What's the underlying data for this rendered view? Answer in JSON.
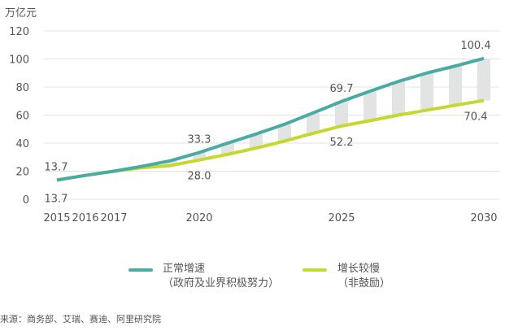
{
  "chart_data": {
    "type": "line",
    "ylabel": "万亿元",
    "ylim": [
      0,
      120
    ],
    "yticks": [
      0,
      20,
      40,
      60,
      80,
      100,
      120
    ],
    "x": [
      2015,
      2016,
      2017,
      2018,
      2019,
      2020,
      2021,
      2022,
      2023,
      2024,
      2025,
      2026,
      2027,
      2028,
      2029,
      2030
    ],
    "xtick_labels": [
      "2015",
      "2016",
      "2017",
      "2020",
      "2025",
      "2030"
    ],
    "xtick_values": [
      2015,
      2016,
      2017,
      2020,
      2025,
      2030
    ],
    "grid": true,
    "legend_position": "bottom",
    "series": [
      {
        "name": "正常增速",
        "name2": "（政府及业界积极努力）",
        "color": "#4aaba4",
        "values": [
          13.7,
          17,
          20,
          23.5,
          27.5,
          33.3,
          40,
          46.5,
          53.5,
          61.5,
          69.7,
          77,
          84,
          90,
          95,
          100.4
        ]
      },
      {
        "name": "增长较慢",
        "name2": "（非鼓励）",
        "color": "#c5d82e",
        "values": [
          13.7,
          17,
          20,
          22.5,
          24,
          28.0,
          32,
          36.5,
          41.5,
          47,
          52.2,
          56,
          60,
          63.5,
          67,
          70.4
        ]
      }
    ],
    "gap_bars_color": "#e1e4e3",
    "annotations": [
      {
        "text": "13.7",
        "year": 2015,
        "series": 0
      },
      {
        "text": "13.7",
        "year": 2015,
        "series": 1
      },
      {
        "text": "33.3",
        "year": 2020,
        "series": 0
      },
      {
        "text": "28.0",
        "year": 2020,
        "series": 1
      },
      {
        "text": "69.7",
        "year": 2025,
        "series": 0
      },
      {
        "text": "52.2",
        "year": 2025,
        "series": 1
      },
      {
        "text": "100.4",
        "year": 2030,
        "series": 0
      },
      {
        "text": "70.4",
        "year": 2030,
        "series": 1
      }
    ]
  },
  "source": "来源：商务部、艾瑞、赛迪、阿里研究院"
}
